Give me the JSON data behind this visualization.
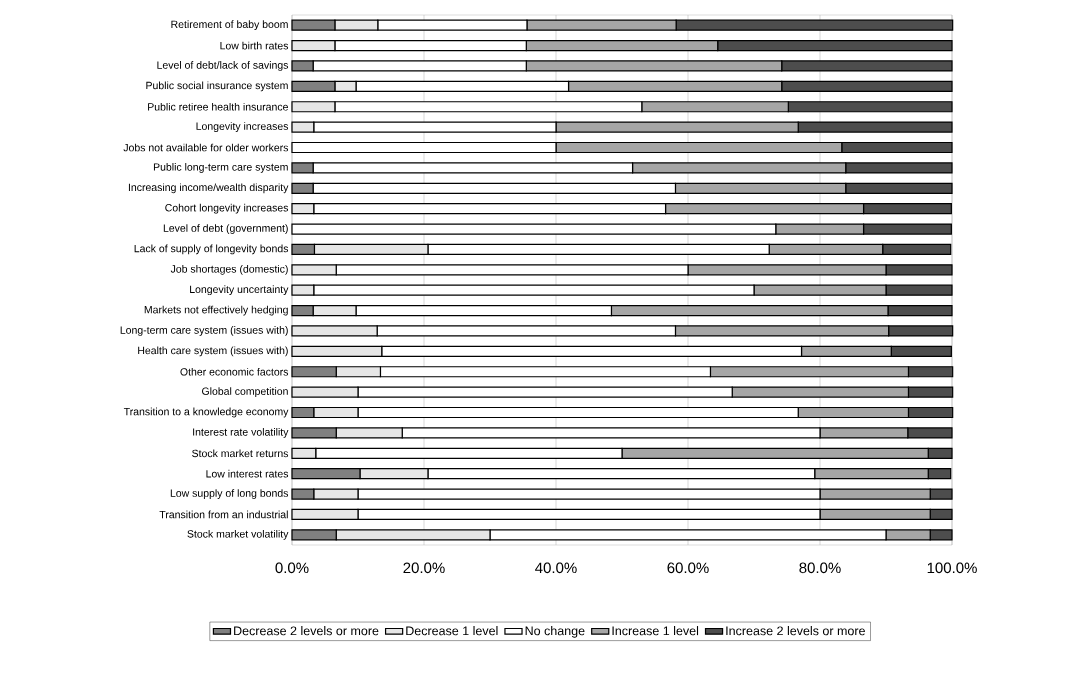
{
  "chart_data": {
    "type": "bar",
    "orientation": "horizontal",
    "stacked": true,
    "categories": [
      "Retirement of baby boom",
      "Low birth rates",
      "Level of debt/lack of savings",
      "Public social insurance system",
      "Public retiree health insurance",
      "Longevity increases",
      "Jobs not available for older workers",
      "Public long-term care system",
      "Increasing income/wealth disparity",
      "Cohort longevity increases",
      "Level of debt (government)",
      "Lack of supply of longevity bonds",
      "Job shortages (domestic)",
      "Longevity uncertainty",
      "Markets not effectively hedging",
      "Long-term care system (issues with)",
      "Health care system (issues with)",
      "Other economic factors",
      "Global competition",
      "Transition to a knowledge economy",
      "Interest rate volatility",
      "Stock market returns",
      "Low interest rates",
      "Low supply of long bonds",
      "Transition from an industrial",
      "Stock market volatility"
    ],
    "series": [
      {
        "name": "Decrease 2 levels or more",
        "color": "#808080",
        "values": [
          6.5,
          0,
          3.2,
          6.5,
          0,
          0,
          0,
          3.2,
          3.2,
          0,
          0,
          3.4,
          0,
          0,
          3.2,
          0,
          0,
          6.7,
          0,
          3.3,
          6.7,
          0,
          10.3,
          3.3,
          0,
          6.7
        ]
      },
      {
        "name": "Decrease 1 level",
        "color": "#e6e6e6",
        "values": [
          6.5,
          6.5,
          0,
          3.2,
          6.5,
          3.3,
          0,
          0,
          0,
          3.3,
          0,
          17.2,
          6.7,
          3.3,
          6.5,
          12.9,
          13.6,
          6.7,
          10,
          6.7,
          10,
          3.6,
          10.3,
          6.7,
          10,
          23.3
        ]
      },
      {
        "name": "No change",
        "color": "#ffffff",
        "values": [
          22.6,
          29.0,
          32.3,
          32.2,
          46.5,
          36.7,
          40.0,
          48.4,
          54.9,
          53.3,
          73.3,
          51.7,
          53.3,
          66.7,
          38.7,
          45.2,
          63.6,
          50.0,
          56.7,
          66.7,
          63.3,
          46.4,
          58.6,
          70.0,
          70.0,
          60.0
        ]
      },
      {
        "name": "Increase 1 level",
        "color": "#a6a6a6",
        "values": [
          22.6,
          29.0,
          38.7,
          32.3,
          22.2,
          36.7,
          43.3,
          32.3,
          25.8,
          30.0,
          13.3,
          17.2,
          30.0,
          20.0,
          41.9,
          32.3,
          13.6,
          30.0,
          26.7,
          16.7,
          13.3,
          46.4,
          17.2,
          16.7,
          16.7,
          6.7
        ]
      },
      {
        "name": "Increase 2 levels or more",
        "color": "#4d4d4d",
        "values": [
          41.9,
          35.5,
          25.8,
          25.8,
          24.8,
          23.3,
          16.7,
          16.1,
          16.1,
          13.3,
          13.3,
          10.3,
          10.0,
          10.0,
          9.7,
          9.7,
          9.1,
          6.7,
          6.7,
          6.7,
          6.7,
          3.6,
          3.4,
          3.3,
          3.3,
          3.3
        ]
      }
    ],
    "xlim": [
      0,
      100
    ],
    "xticks": [
      {
        "value": 0,
        "label": "0.0%"
      },
      {
        "value": 20,
        "label": "20.0%"
      },
      {
        "value": 40,
        "label": "40.0%"
      },
      {
        "value": 60,
        "label": "60.0%"
      },
      {
        "value": 80,
        "label": "80.0%"
      },
      {
        "value": 100,
        "label": "100.0%"
      }
    ],
    "grid": "x",
    "legend": "bottom"
  }
}
